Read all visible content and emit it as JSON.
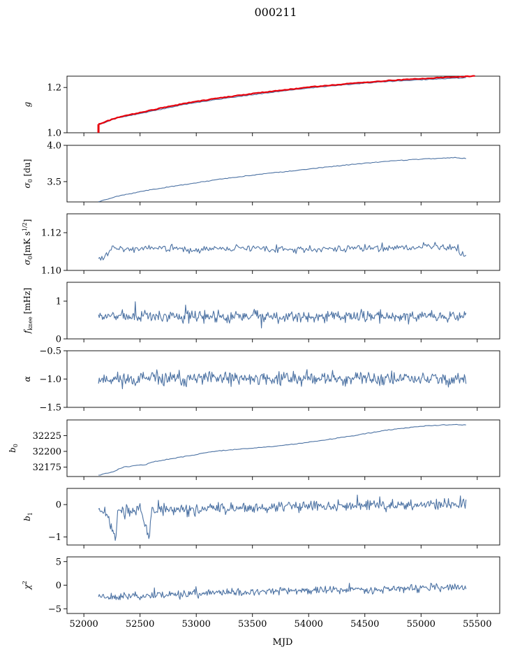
{
  "figure": {
    "title": "000211",
    "xlabel": "MJD"
  },
  "colors": {
    "series": "#4c72a3",
    "fit": "#e8000b",
    "axis": "#000000"
  },
  "chart_data": [
    {
      "type": "line",
      "ylabel": "g",
      "xlim": [
        51850,
        55700
      ],
      "ylim": [
        1.0,
        1.25
      ],
      "yticks": [
        1.0,
        1.2
      ],
      "ytick_labels": [
        "1.0",
        "1.2"
      ],
      "series": [
        {
          "color": "#4c72a3",
          "x": [
            52130,
            52300,
            52600,
            52900,
            53200,
            53500,
            53800,
            54100,
            54400,
            54700,
            55000,
            55300,
            55400
          ],
          "y": [
            1.035,
            1.065,
            1.095,
            1.125,
            1.148,
            1.168,
            1.186,
            1.202,
            1.215,
            1.226,
            1.234,
            1.241,
            1.243
          ]
        },
        {
          "color": "#e8000b",
          "x": [
            52130,
            52300,
            52600,
            52900,
            53200,
            53500,
            53800,
            54100,
            54400,
            54700,
            55000,
            55300,
            55480
          ],
          "y": [
            1.038,
            1.068,
            1.1,
            1.13,
            1.153,
            1.173,
            1.19,
            1.206,
            1.219,
            1.23,
            1.239,
            1.246,
            1.25
          ]
        }
      ]
    },
    {
      "type": "line",
      "ylabel": "σ0 [du]",
      "xlim": [
        51850,
        55700
      ],
      "ylim": [
        3.22,
        4.0
      ],
      "yticks": [
        3.5,
        4.0
      ],
      "ytick_labels": [
        "3.5",
        "4.0"
      ],
      "series": [
        {
          "color": "#4c72a3",
          "x": [
            52130,
            52300,
            52600,
            52900,
            53200,
            53500,
            53800,
            54100,
            54400,
            54700,
            55000,
            55300,
            55400
          ],
          "y": [
            3.22,
            3.3,
            3.39,
            3.46,
            3.53,
            3.59,
            3.64,
            3.69,
            3.74,
            3.78,
            3.81,
            3.83,
            3.82
          ]
        }
      ]
    },
    {
      "type": "line",
      "ylabel": "σ0[mK s^1/2]",
      "xlim": [
        51850,
        55700
      ],
      "ylim": [
        1.1,
        1.13
      ],
      "yticks": [
        1.1,
        1.12
      ],
      "ytick_labels": [
        "1.10",
        "1.12"
      ],
      "noise": {
        "n": 320,
        "amp": 0.0013,
        "seed": 3
      },
      "series": [
        {
          "color": "#4c72a3",
          "x": [
            52130,
            52180,
            52250,
            52400,
            52700,
            53000,
            53500,
            54000,
            54500,
            54900,
            55100,
            55300,
            55350,
            55400
          ],
          "y": [
            1.106,
            1.107,
            1.112,
            1.111,
            1.112,
            1.111,
            1.112,
            1.111,
            1.112,
            1.112,
            1.113,
            1.112,
            1.109,
            1.108
          ]
        }
      ]
    },
    {
      "type": "line",
      "ylabel": "f_knee [mHz]",
      "xlim": [
        51850,
        55700
      ],
      "ylim": [
        0,
        1.5
      ],
      "yticks": [
        0,
        1
      ],
      "ytick_labels": [
        "0",
        "1"
      ],
      "noise": {
        "n": 460,
        "amp": 0.11,
        "seed": 7
      },
      "series": [
        {
          "color": "#4c72a3",
          "x": [
            52130,
            53000,
            54000,
            55000,
            55400
          ],
          "y": [
            0.6,
            0.6,
            0.6,
            0.6,
            0.6
          ]
        }
      ]
    },
    {
      "type": "line",
      "ylabel": "α",
      "xlim": [
        51850,
        55700
      ],
      "ylim": [
        -1.5,
        -0.5
      ],
      "yticks": [
        -1.5,
        -1.0,
        -0.5
      ],
      "ytick_labels": [
        "−1.5",
        "−1.0",
        "−0.5"
      ],
      "noise": {
        "n": 460,
        "amp": 0.09,
        "seed": 11
      },
      "series": [
        {
          "color": "#4c72a3",
          "x": [
            52130,
            53000,
            54000,
            55000,
            55400
          ],
          "y": [
            -1.0,
            -1.0,
            -0.98,
            -1.0,
            -1.0
          ]
        }
      ]
    },
    {
      "type": "line",
      "ylabel": "b0",
      "xlim": [
        51850,
        55700
      ],
      "ylim": [
        32160,
        32250
      ],
      "yticks": [
        32175,
        32200,
        32225
      ],
      "ytick_labels": [
        "32175",
        "32200",
        "32225"
      ],
      "series": [
        {
          "color": "#4c72a3",
          "x": [
            52130,
            52250,
            52350,
            52550,
            52600,
            52900,
            53200,
            53500,
            53800,
            54100,
            54400,
            54700,
            55000,
            55300,
            55400
          ],
          "y": [
            32162,
            32167,
            32175,
            32179,
            32183,
            32192,
            32201,
            32205,
            32210,
            32217,
            32225,
            32234,
            32240,
            32243,
            32242
          ]
        }
      ]
    },
    {
      "type": "line",
      "ylabel": "b1",
      "xlim": [
        51850,
        55700
      ],
      "ylim": [
        -1.25,
        0.5
      ],
      "yticks": [
        -1,
        0
      ],
      "ytick_labels": [
        "−1",
        "0"
      ],
      "noise": {
        "n": 460,
        "amp": 0.12,
        "seed": 17
      },
      "series": [
        {
          "color": "#4c72a3",
          "x": [
            52130,
            52200,
            52280,
            52300,
            52500,
            52580,
            52600,
            53000,
            54000,
            55000,
            55400
          ],
          "y": [
            -0.15,
            -0.2,
            -1.1,
            -0.25,
            -0.15,
            -1.0,
            -0.2,
            -0.15,
            -0.05,
            0.0,
            0.0
          ]
        }
      ]
    },
    {
      "type": "line",
      "ylabel": "χ2",
      "xlim": [
        51850,
        55700
      ],
      "ylim": [
        -6,
        6
      ],
      "yticks": [
        -5,
        0,
        5
      ],
      "ytick_labels": [
        "−5",
        "0",
        "5"
      ],
      "noise": {
        "n": 460,
        "amp": 0.6,
        "seed": 23
      },
      "series": [
        {
          "color": "#4c72a3",
          "x": [
            52130,
            52300,
            52700,
            53200,
            53700,
            54200,
            54700,
            55200,
            55400
          ],
          "y": [
            -2.2,
            -2.5,
            -2.0,
            -1.6,
            -1.3,
            -1.0,
            -0.8,
            -0.5,
            -0.6
          ]
        }
      ]
    }
  ],
  "xticks": [
    52000,
    52500,
    53000,
    53500,
    54000,
    54500,
    55000,
    55500
  ],
  "xtick_labels": [
    "52000",
    "52500",
    "53000",
    "53500",
    "54000",
    "54500",
    "55000",
    "55500"
  ]
}
